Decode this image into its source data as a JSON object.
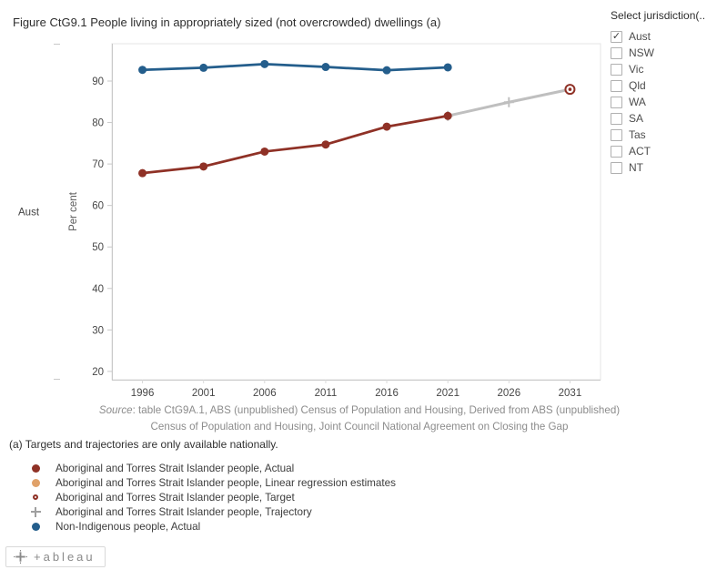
{
  "title": "Figure CtG9.1 People living in appropriately sized (not overcrowded) dwellings (a)",
  "jurisdiction_filter": {
    "label": "Select jurisdiction(..",
    "options": [
      {
        "label": "Aust",
        "checked": true
      },
      {
        "label": "NSW",
        "checked": false
      },
      {
        "label": "Vic",
        "checked": false
      },
      {
        "label": "Qld",
        "checked": false
      },
      {
        "label": "WA",
        "checked": false
      },
      {
        "label": "SA",
        "checked": false
      },
      {
        "label": "Tas",
        "checked": false
      },
      {
        "label": "ACT",
        "checked": false
      },
      {
        "label": "NT",
        "checked": false
      }
    ]
  },
  "chart_data": {
    "type": "line",
    "row_label": "Aust",
    "ylabel": "Per cent",
    "xlabel": "",
    "ylim": [
      18,
      99
    ],
    "yticks": [
      20,
      30,
      40,
      50,
      60,
      70,
      80,
      90
    ],
    "x": [
      1996,
      2001,
      2006,
      2011,
      2016,
      2021,
      2026,
      2031
    ],
    "grid": false,
    "series": [
      {
        "name": "Aboriginal and Torres Strait Islander people, Trajectory",
        "marker": "plus",
        "line": true,
        "color": "#bfbfbf",
        "line_width": 3,
        "values": [
          null,
          null,
          null,
          null,
          null,
          81.6,
          84.9,
          88.0
        ]
      },
      {
        "name": "Aboriginal and Torres Strait Islander people, Actual",
        "marker": "circle",
        "line": true,
        "color": "#8f3126",
        "line_width": 2.75,
        "values": [
          67.8,
          69.4,
          73.0,
          74.7,
          79.0,
          81.6,
          null,
          null
        ]
      },
      {
        "name": "Non-Indigenous people, Actual",
        "marker": "circle",
        "line": true,
        "color": "#245e8c",
        "line_width": 2.75,
        "values": [
          92.7,
          93.2,
          94.1,
          93.4,
          92.6,
          93.3,
          null,
          null
        ]
      },
      {
        "name": "Aboriginal and Torres Strait Islander people, Target",
        "marker": "target",
        "line": false,
        "color": "#8f3126",
        "line_width": 2,
        "values": [
          null,
          null,
          null,
          null,
          null,
          null,
          null,
          88.0
        ]
      }
    ]
  },
  "source": {
    "prefix": "Source",
    "line1": ": table CtG9A.1, ABS (unpublished) Census of Population and Housing, Derived from ABS (unpublished)",
    "line2": "Census of Population and Housing, Joint Council National Agreement on Closing the Gap"
  },
  "footnote": "(a) Targets and trajectories are only available nationally.",
  "legend": [
    {
      "label": "Aboriginal and Torres Strait Islander people, Actual",
      "marker": "circle",
      "color": "#8f3126"
    },
    {
      "label": "Aboriginal and Torres Strait Islander people, Linear regression estimates",
      "marker": "circle",
      "color": "#e0a169"
    },
    {
      "label": "Aboriginal and Torres Strait Islander people, Target",
      "marker": "open-circle",
      "color": "#8f3126"
    },
    {
      "label": "Aboriginal and Torres Strait Islander people, Trajectory",
      "marker": "plus",
      "color": "#9f9f9f"
    },
    {
      "label": "Non-Indigenous people, Actual",
      "marker": "circle",
      "color": "#245e8c"
    }
  ],
  "footer": {
    "logo_text": "+ableau"
  }
}
